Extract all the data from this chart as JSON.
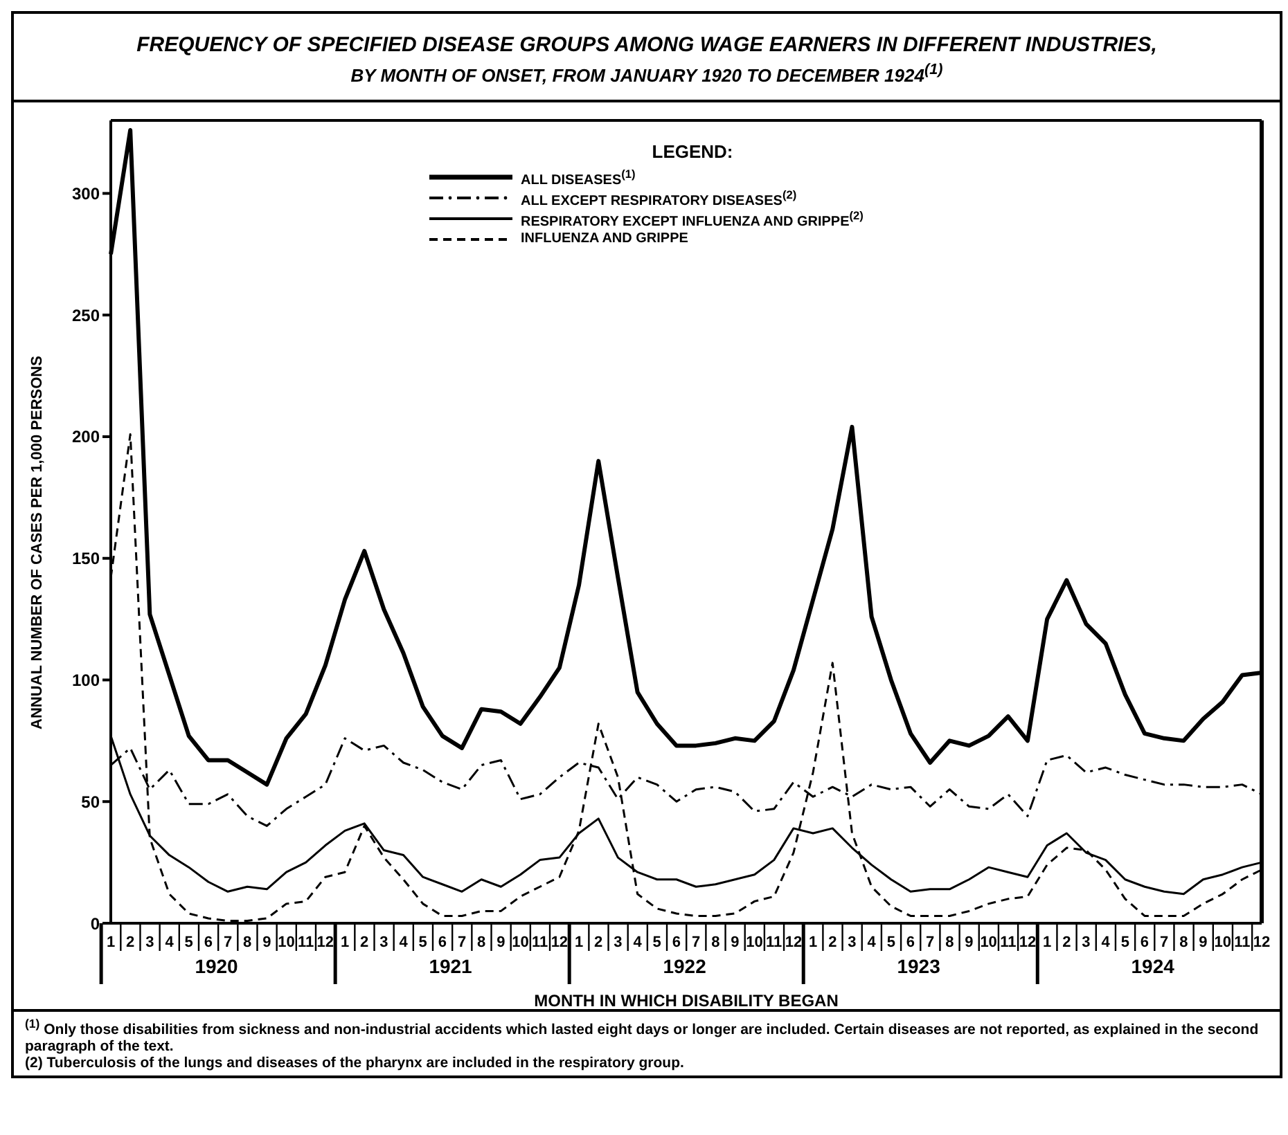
{
  "chart_data": {
    "type": "line",
    "title": "FREQUENCY OF SPECIFIED DISEASE GROUPS AMONG WAGE EARNERS IN DIFFERENT INDUSTRIES,",
    "subtitle": "BY MONTH OF ONSET, FROM JANUARY 1920 TO DECEMBER 1924$^{(1)}$",
    "xlabel": "MONTH IN WHICH DISABILITY BEGAN",
    "ylabel": "ANNUAL NUMBER OF CASES PER 1,000 PERSONS",
    "legend_title": "LEGEND:",
    "legend": "top",
    "grid": false,
    "marker": "none",
    "categories": [
      "1",
      "2",
      "3",
      "4",
      "5",
      "6",
      "7",
      "8",
      "9",
      "10",
      "11",
      "12",
      "1",
      "2",
      "3",
      "4",
      "5",
      "6",
      "7",
      "8",
      "9",
      "10",
      "11",
      "12",
      "1",
      "2",
      "3",
      "4",
      "5",
      "6",
      "7",
      "8",
      "9",
      "10",
      "11",
      "12",
      "1",
      "2",
      "3",
      "4",
      "5",
      "6",
      "7",
      "8",
      "9",
      "10",
      "11",
      "12",
      "1",
      "2",
      "3",
      "4",
      "5",
      "6",
      "7",
      "8",
      "9",
      "10",
      "11",
      "12"
    ],
    "ylim": [
      0,
      330
    ],
    "yticks": [
      0,
      50,
      100,
      150,
      200,
      250,
      300
    ],
    "series": [
      {
        "name": "ALL DISEASES$^{(1)}$",
        "color": "#000000",
        "line_style": "solid",
        "values": [
          275,
          326,
          127,
          102,
          77,
          67,
          67,
          62,
          57,
          76,
          86,
          106,
          133,
          153,
          129,
          111,
          89,
          77,
          72,
          88,
          87,
          82,
          93,
          105,
          139,
          190,
          142,
          95,
          82,
          73,
          73,
          74,
          76,
          75,
          83,
          104,
          133,
          162,
          204,
          126,
          100,
          78,
          66,
          75,
          73,
          77,
          85,
          75,
          125,
          141,
          123,
          115,
          94,
          78,
          76,
          75,
          84,
          91,
          102,
          103
        ]
      },
      {
        "name": "ALL EXCEPT RESPIRATORY DISEASES$^{(2)}$",
        "color": "#000000",
        "line_style": "dashdot",
        "values": [
          65,
          72,
          55,
          63,
          49,
          49,
          53,
          44,
          40,
          47,
          52,
          57,
          76,
          71,
          73,
          66,
          63,
          58,
          55,
          65,
          67,
          51,
          53,
          60,
          66,
          64,
          51,
          60,
          57,
          50,
          55,
          56,
          54,
          46,
          47,
          58,
          52,
          56,
          52,
          57,
          55,
          56,
          48,
          55,
          48,
          47,
          53,
          44,
          67,
          69,
          62,
          64,
          61,
          59,
          57,
          57,
          56,
          56,
          57,
          53
        ]
      },
      {
        "name": "RESPIRATORY EXCEPT INFLUENZA AND GRIPPE$^{(2)}$",
        "color": "#000000",
        "line_style": "solid",
        "values": [
          77,
          53,
          36,
          28,
          23,
          17,
          13,
          15,
          14,
          21,
          25,
          32,
          38,
          41,
          30,
          28,
          19,
          16,
          13,
          18,
          15,
          20,
          26,
          27,
          37,
          43,
          27,
          21,
          18,
          18,
          15,
          16,
          18,
          20,
          26,
          39,
          37,
          39,
          31,
          24,
          18,
          13,
          14,
          14,
          18,
          23,
          21,
          19,
          32,
          37,
          29,
          26,
          18,
          15,
          13,
          12,
          18,
          20,
          23,
          25
        ]
      },
      {
        "name": "INFLUENZA AND GRIPPE",
        "color": "#000000",
        "line_style": "dashed",
        "values": [
          142,
          201,
          35,
          12,
          4,
          2,
          1,
          1,
          2,
          8,
          9,
          19,
          21,
          40,
          27,
          18,
          8,
          3,
          3,
          5,
          5,
          11,
          15,
          19,
          38,
          82,
          60,
          12,
          6,
          4,
          3,
          3,
          4,
          9,
          11,
          29,
          62,
          107,
          37,
          15,
          7,
          3,
          3,
          3,
          5,
          8,
          10,
          11,
          24,
          31,
          30,
          22,
          10,
          3,
          3,
          3,
          8,
          12,
          18,
          22
        ]
      }
    ],
    "annotations": [
      "1920",
      "1921",
      "1922",
      "1923",
      "1924",
      "$^{(1)}$ Only those disabilities from sickness and non-industrial accidents which lasted eight days or longer are included. Certain diseases are not reported, as explained in the second paragraph of the text.",
      "(2) Tuberculosis of the lungs and diseases of the pharynx are included in the respiratory group."
    ]
  }
}
